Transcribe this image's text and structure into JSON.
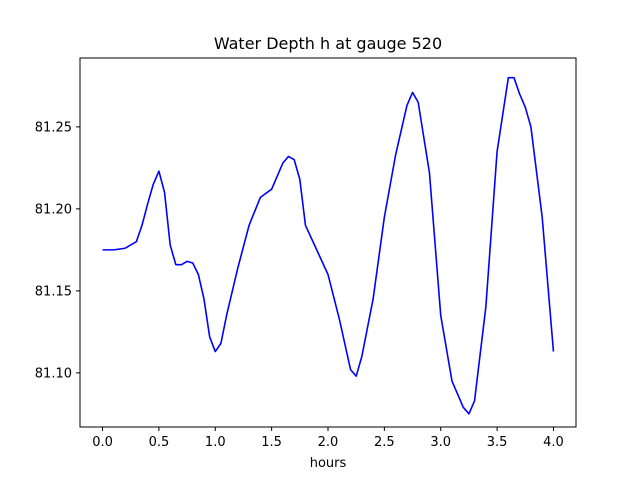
{
  "chart_data": {
    "type": "line",
    "title": "Water Depth h at gauge 520",
    "xlabel": "hours",
    "ylabel": "",
    "xlim": [
      -0.2,
      4.2
    ],
    "ylim": [
      81.067,
      81.292
    ],
    "x_ticks": [
      0.0,
      0.5,
      1.0,
      1.5,
      2.0,
      2.5,
      3.0,
      3.5,
      4.0
    ],
    "x_tick_labels": [
      "0.0",
      "0.5",
      "1.0",
      "1.5",
      "2.0",
      "2.5",
      "3.0",
      "3.5",
      "4.0"
    ],
    "y_ticks": [
      81.1,
      81.15,
      81.2,
      81.25
    ],
    "y_tick_labels": [
      "81.10",
      "81.15",
      "81.20",
      "81.25"
    ],
    "grid": false,
    "series": [
      {
        "color": "#0000ff",
        "x": [
          0.0,
          0.1,
          0.2,
          0.3,
          0.35,
          0.4,
          0.45,
          0.5,
          0.55,
          0.6,
          0.65,
          0.7,
          0.75,
          0.8,
          0.85,
          0.9,
          0.95,
          1.0,
          1.05,
          1.1,
          1.2,
          1.3,
          1.4,
          1.5,
          1.55,
          1.6,
          1.65,
          1.7,
          1.75,
          1.8,
          1.9,
          2.0,
          2.1,
          2.2,
          2.25,
          2.3,
          2.4,
          2.5,
          2.6,
          2.7,
          2.75,
          2.8,
          2.9,
          3.0,
          3.1,
          3.2,
          3.25,
          3.3,
          3.4,
          3.5,
          3.6,
          3.65,
          3.7,
          3.75,
          3.8,
          3.9,
          4.0
        ],
        "y": [
          81.175,
          81.175,
          81.176,
          81.18,
          81.19,
          81.203,
          81.215,
          81.223,
          81.21,
          81.178,
          81.166,
          81.166,
          81.168,
          81.167,
          81.16,
          81.145,
          81.122,
          81.113,
          81.118,
          81.135,
          81.164,
          81.19,
          81.207,
          81.212,
          81.22,
          81.228,
          81.232,
          81.23,
          81.218,
          81.19,
          81.175,
          81.16,
          81.133,
          81.102,
          81.098,
          81.11,
          81.145,
          81.195,
          81.233,
          81.263,
          81.271,
          81.265,
          81.222,
          81.135,
          81.095,
          81.079,
          81.075,
          81.083,
          81.14,
          81.235,
          81.28,
          81.28,
          81.27,
          81.262,
          81.25,
          81.195,
          81.113
        ]
      }
    ]
  }
}
